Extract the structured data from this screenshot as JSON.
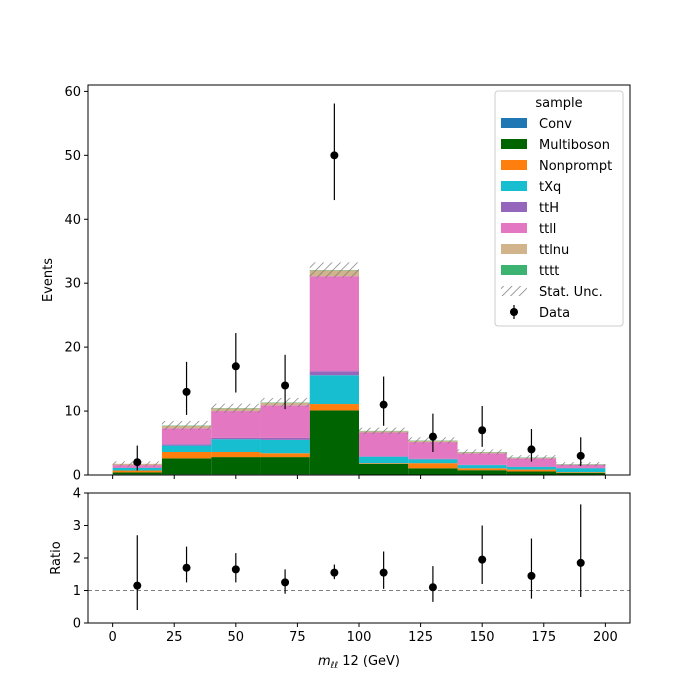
{
  "chart_data": {
    "type": "bar",
    "stacked": true,
    "bin_edges": [
      0,
      20,
      40,
      60,
      80,
      100,
      120,
      140,
      160,
      180,
      200
    ],
    "xlim": [
      -10,
      210
    ],
    "xlabel_main": "m",
    "xlabel_sub": "ℓℓ",
    "xlabel_rest": " 12 (GeV)",
    "x_ticks": [
      0,
      25,
      50,
      75,
      100,
      125,
      150,
      175,
      200
    ],
    "x_tick_labels": [
      "0",
      "25",
      "50",
      "75",
      "100",
      "125",
      "150",
      "175",
      "200"
    ],
    "top": {
      "ylabel": "Events",
      "ylim": [
        0,
        61
      ],
      "y_ticks": [
        0,
        10,
        20,
        30,
        40,
        50,
        60
      ],
      "y_tick_labels": [
        "0",
        "10",
        "20",
        "30",
        "40",
        "50",
        "60"
      ]
    },
    "bottom": {
      "ylabel": "Ratio",
      "ylim": [
        0,
        4
      ],
      "y_ticks": [
        0,
        1,
        2,
        3,
        4
      ],
      "y_tick_labels": [
        "0",
        "1",
        "2",
        "3",
        "4"
      ],
      "reference_line": 1
    },
    "series": [
      {
        "name": "Conv",
        "color": "#1f77b4",
        "values": [
          0.1,
          0.1,
          0.1,
          0.1,
          0.1,
          0.05,
          0.05,
          0.05,
          0.05,
          0.05
        ]
      },
      {
        "name": "Multiboson",
        "color": "#006400",
        "values": [
          0.3,
          2.5,
          2.7,
          2.7,
          10.0,
          1.7,
          1.0,
          0.7,
          0.5,
          0.3
        ]
      },
      {
        "name": "Nonprompt",
        "color": "#ff7f0e",
        "values": [
          0.3,
          1.0,
          0.8,
          0.6,
          1.0,
          0.1,
          0.8,
          0.3,
          0.3,
          0.1
        ]
      },
      {
        "name": "tXq",
        "color": "#17becf",
        "values": [
          0.4,
          1.0,
          2.0,
          2.1,
          4.5,
          1.0,
          0.6,
          0.5,
          0.4,
          0.6
        ]
      },
      {
        "name": "ttH",
        "color": "#9467bd",
        "values": [
          0.05,
          0.2,
          0.2,
          0.3,
          0.6,
          0.1,
          0.1,
          0.05,
          0.05,
          0.05
        ]
      },
      {
        "name": "ttll",
        "color": "#e377c2",
        "values": [
          0.4,
          2.5,
          4.2,
          5.1,
          14.9,
          3.7,
          2.6,
          1.8,
          1.3,
          0.5
        ]
      },
      {
        "name": "ttlnu",
        "color": "#d2b48c",
        "values": [
          0.2,
          0.4,
          0.4,
          0.4,
          0.9,
          0.2,
          0.2,
          0.15,
          0.1,
          0.05
        ]
      },
      {
        "name": "tttt",
        "color": "#3cb371",
        "values": [
          0.0,
          0.05,
          0.05,
          0.05,
          0.05,
          0.05,
          0.05,
          0.05,
          0.05,
          0.05
        ]
      }
    ],
    "stat_unc": [
      0.4,
      0.7,
      0.7,
      0.7,
      1.2,
      0.5,
      0.5,
      0.4,
      0.35,
      0.3
    ],
    "stat_unc_name": "Stat. Unc.",
    "data": {
      "name": "Data",
      "x": [
        10,
        30,
        50,
        70,
        90,
        110,
        130,
        150,
        170,
        190
      ],
      "y": [
        2,
        13,
        17,
        14,
        50,
        11,
        6,
        7,
        4,
        3
      ],
      "err_low": [
        1.3,
        3.6,
        4.1,
        3.7,
        7.0,
        3.3,
        2.4,
        2.6,
        1.9,
        1.6
      ],
      "err_high": [
        2.6,
        4.7,
        5.2,
        4.8,
        8.1,
        4.4,
        3.6,
        3.8,
        3.2,
        2.9
      ]
    },
    "ratio": {
      "x": [
        10,
        30,
        50,
        70,
        90,
        110,
        130,
        150,
        170,
        190
      ],
      "y": [
        1.15,
        1.7,
        1.65,
        1.25,
        1.55,
        1.55,
        1.1,
        1.95,
        1.45,
        1.85
      ],
      "err_low": [
        0.75,
        0.45,
        0.4,
        0.35,
        0.2,
        0.5,
        0.45,
        0.75,
        0.7,
        1.05
      ],
      "err_high": [
        1.55,
        0.65,
        0.5,
        0.4,
        0.25,
        0.65,
        0.65,
        1.05,
        1.15,
        1.8
      ]
    },
    "legend": {
      "title": "sample",
      "position": "top-right"
    }
  }
}
